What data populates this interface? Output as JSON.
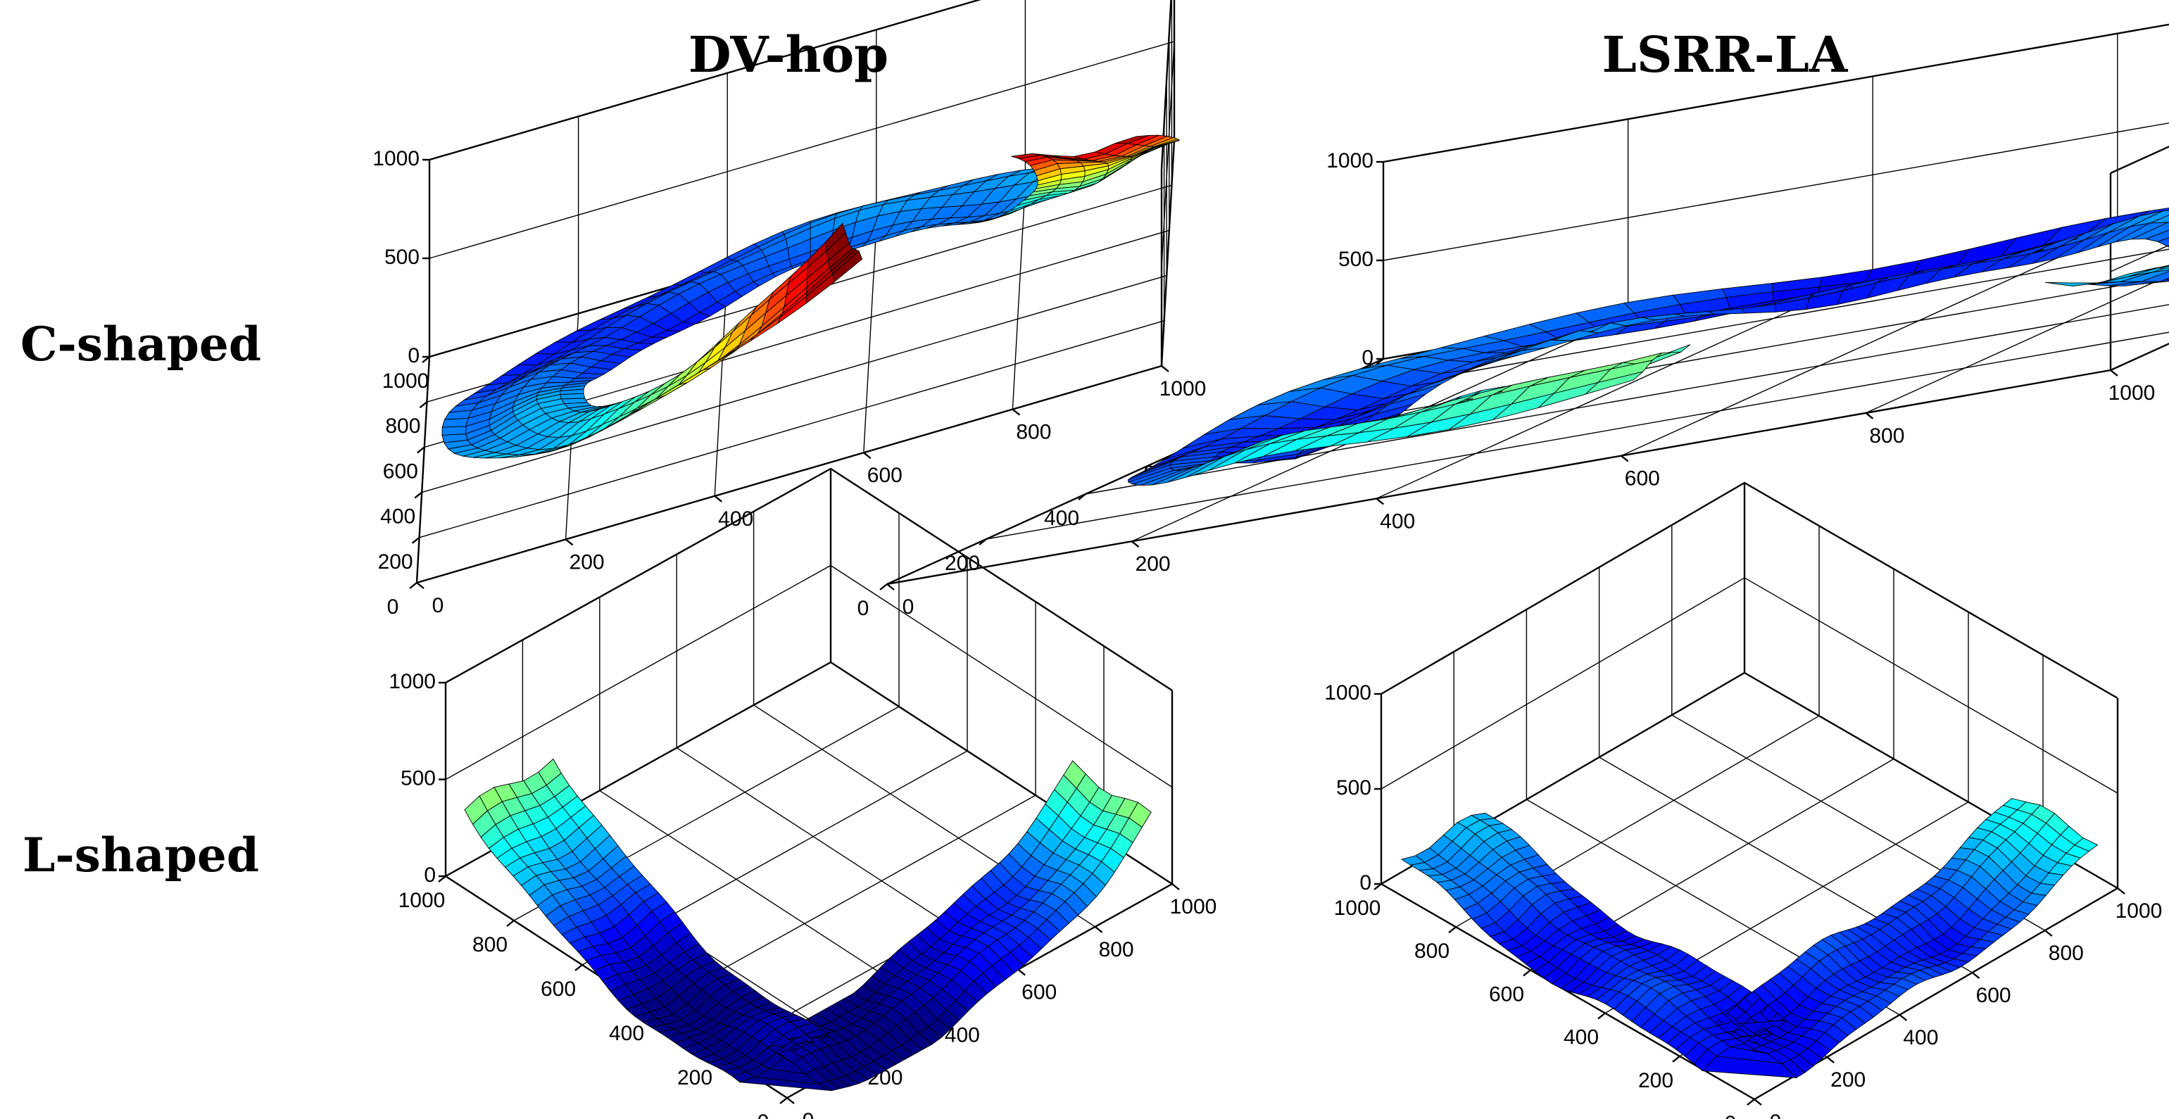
{
  "figure": {
    "column_titles": [
      "DV-hop",
      "LSRR-LA"
    ],
    "row_labels": [
      "C-shaped",
      "L-shaped"
    ]
  },
  "chart_data": [
    {
      "type": "surface3d",
      "method": "DV-hop",
      "shape": "C-shaped",
      "x_ticks": [
        "0",
        "200",
        "400",
        "600",
        "800",
        "1000"
      ],
      "y_ticks": [
        "0",
        "200",
        "400",
        "600",
        "800",
        "1000"
      ],
      "z_ticks": [
        "0",
        "500",
        "1000"
      ],
      "xlim": [
        0,
        1000
      ],
      "ylim": [
        0,
        1000
      ],
      "zlim": [
        0,
        1000
      ],
      "colormap": "jet",
      "z_profile": {
        "base": 80,
        "start_peak": 820,
        "end_peak": 900,
        "noise": 70
      },
      "grid": true
    },
    {
      "type": "surface3d",
      "method": "LSRR-LA",
      "shape": "C-shaped",
      "x_ticks": [
        "0",
        "200",
        "400",
        "600",
        "800",
        "1000"
      ],
      "y_ticks": [
        "0",
        "200",
        "400",
        "600",
        "800",
        "1000"
      ],
      "z_ticks": [
        "0",
        "500",
        "1000"
      ],
      "xlim": [
        0,
        1000
      ],
      "ylim": [
        0,
        1000
      ],
      "zlim": [
        0,
        1000
      ],
      "colormap": "jet",
      "z_profile": {
        "base": 60,
        "start_peak": 200,
        "end_peak": 420,
        "noise": 110
      },
      "grid": true
    },
    {
      "type": "surface3d",
      "method": "DV-hop",
      "shape": "L-shaped",
      "x_ticks": [
        "0",
        "200",
        "400",
        "600",
        "800",
        "1000"
      ],
      "y_ticks": [
        "0",
        "200",
        "400",
        "600",
        "800",
        "1000"
      ],
      "z_ticks": [
        "0",
        "500",
        "1000"
      ],
      "xlim": [
        0,
        1000
      ],
      "ylim": [
        0,
        1000
      ],
      "zlim": [
        0,
        1000
      ],
      "colormap": "jet",
      "z_profile": {
        "base": -120,
        "start_peak": 430,
        "end_peak": 400,
        "noise": 60
      },
      "grid": true
    },
    {
      "type": "surface3d",
      "method": "LSRR-LA",
      "shape": "L-shaped",
      "x_ticks": [
        "0",
        "200",
        "400",
        "600",
        "800",
        "1000"
      ],
      "y_ticks": [
        "0",
        "200",
        "400",
        "600",
        "800",
        "1000"
      ],
      "z_ticks": [
        "0",
        "500",
        "1000"
      ],
      "xlim": [
        0,
        1000
      ],
      "ylim": [
        0,
        1000
      ],
      "zlim": [
        0,
        1000
      ],
      "colormap": "jet",
      "z_profile": {
        "base": 20,
        "start_peak": 160,
        "end_peak": 260,
        "noise": 70
      },
      "grid": true
    }
  ]
}
